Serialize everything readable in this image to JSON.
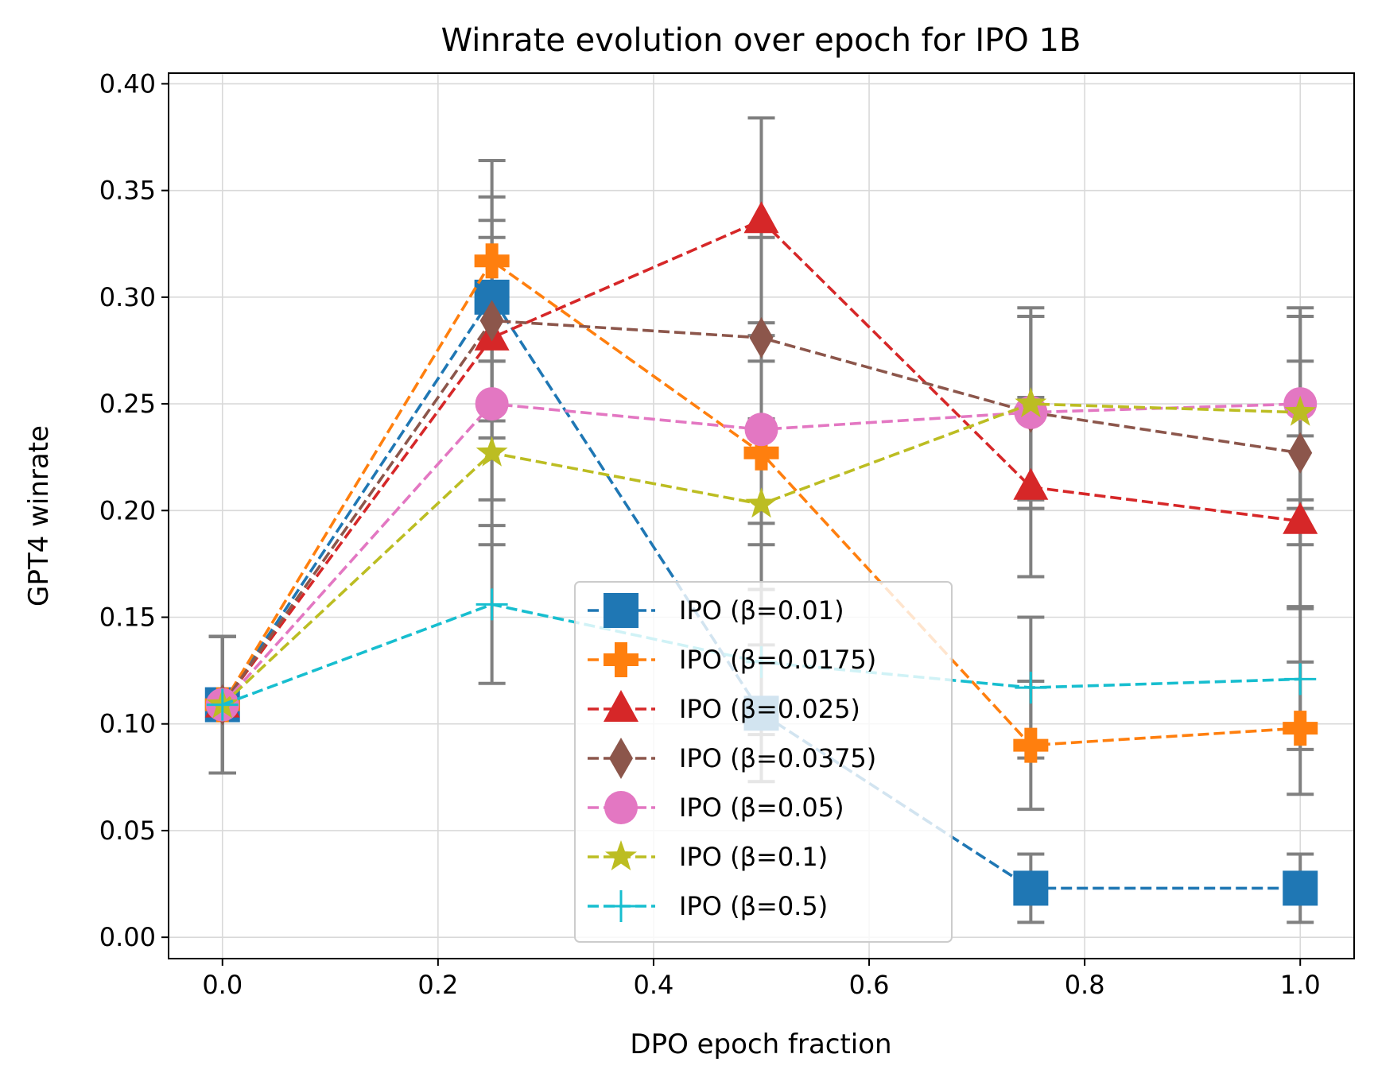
{
  "chart_data": {
    "type": "line",
    "title": "Winrate evolution over epoch for IPO 1B",
    "xlabel": "DPO epoch fraction",
    "ylabel": "GPT4 winrate",
    "xlim": [
      -0.05,
      1.05
    ],
    "ylim": [
      -0.01,
      0.405
    ],
    "xticks": [
      0.0,
      0.2,
      0.4,
      0.6,
      0.8,
      1.0
    ],
    "xtick_labels": [
      "0.0",
      "0.2",
      "0.4",
      "0.6",
      "0.8",
      "1.0"
    ],
    "yticks": [
      0.0,
      0.05,
      0.1,
      0.15,
      0.2,
      0.25,
      0.3,
      0.35,
      0.4
    ],
    "ytick_labels": [
      "0.00",
      "0.05",
      "0.10",
      "0.15",
      "0.20",
      "0.25",
      "0.30",
      "0.35",
      "0.40"
    ],
    "grid": true,
    "legend_location": "lower-center",
    "x": [
      0.0,
      0.25,
      0.5,
      0.75,
      1.0
    ],
    "error_bar_color": "#808080",
    "series": [
      {
        "name": "IPO (β=0.01)",
        "marker": "square",
        "color": "#1f77b4",
        "values": [
          0.109,
          0.3,
          0.105,
          0.023,
          0.023
        ],
        "errors": [
          0.032,
          0.047,
          0.032,
          0.016,
          0.016
        ]
      },
      {
        "name": "IPO (β=0.0175)",
        "marker": "plus",
        "color": "#ff7f0e",
        "values": [
          0.109,
          0.317,
          0.227,
          0.09,
          0.098
        ],
        "errors": [
          0.032,
          0.047,
          0.043,
          0.03,
          0.031
        ]
      },
      {
        "name": "IPO (β=0.025)",
        "marker": "triangle",
        "color": "#d62728",
        "values": [
          0.109,
          0.281,
          0.336,
          0.211,
          0.195
        ],
        "errors": [
          0.032,
          0.047,
          0.048,
          0.042,
          0.04
        ]
      },
      {
        "name": "IPO (β=0.0375)",
        "marker": "diamond",
        "color": "#8c564b",
        "values": [
          0.109,
          0.289,
          0.281,
          0.246,
          0.227
        ],
        "errors": [
          0.032,
          0.047,
          0.047,
          0.045,
          0.043
        ]
      },
      {
        "name": "IPO (β=0.05)",
        "marker": "circle",
        "color": "#e377c2",
        "values": [
          0.109,
          0.25,
          0.238,
          0.246,
          0.25
        ],
        "errors": [
          0.032,
          0.045,
          0.044,
          0.045,
          0.045
        ]
      },
      {
        "name": "IPO (β=0.1)",
        "marker": "star",
        "color": "#bcbd22",
        "values": [
          0.109,
          0.227,
          0.203,
          0.25,
          0.246
        ],
        "errors": [
          0.032,
          0.043,
          0.04,
          0.045,
          0.045
        ]
      },
      {
        "name": "IPO (β=0.5)",
        "marker": "thinplus",
        "color": "#17becf",
        "values": [
          0.109,
          0.156,
          0.129,
          0.117,
          0.121
        ],
        "errors": [
          0.032,
          0.037,
          0.034,
          0.033,
          0.033
        ]
      }
    ]
  }
}
